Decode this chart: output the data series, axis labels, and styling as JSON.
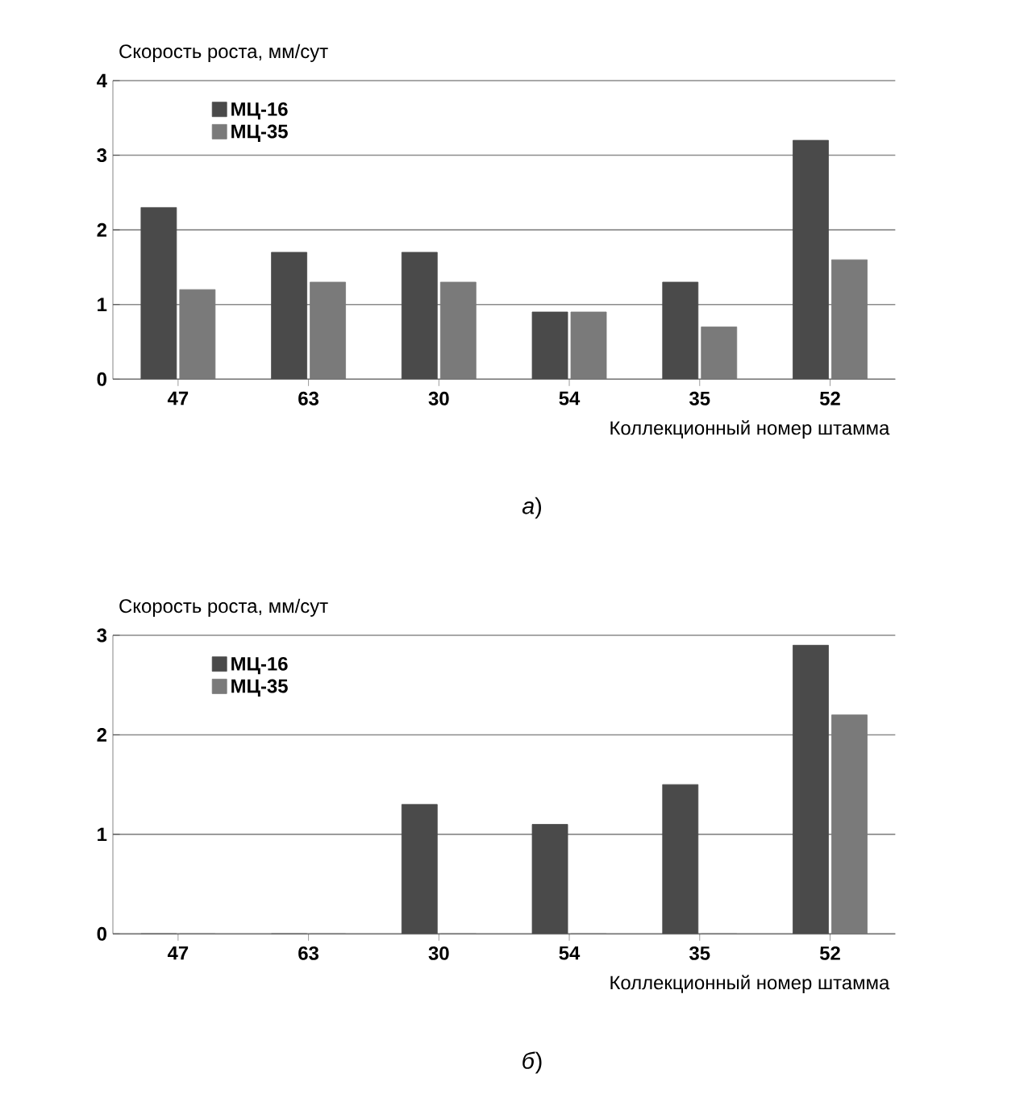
{
  "chart_data": [
    {
      "type": "bar",
      "ylabel": "Скорость роста, мм/сут",
      "xlabel": "Коллекционный номер штамма",
      "categories": [
        "47",
        "63",
        "30",
        "54",
        "35",
        "52"
      ],
      "series": [
        {
          "name": "МЦ-16",
          "color": "#4a4a4a",
          "values": [
            2.3,
            1.7,
            1.7,
            0.9,
            1.3,
            3.2
          ]
        },
        {
          "name": "МЦ-35",
          "color": "#7a7a7a",
          "values": [
            1.2,
            1.3,
            1.3,
            0.9,
            0.7,
            1.6
          ]
        }
      ],
      "ylim": [
        0,
        4
      ],
      "yticks": [
        0,
        1,
        2,
        3,
        4
      ],
      "grid": "y",
      "legend": "top left",
      "annotations": [
        "*а*)"
      ]
    },
    {
      "type": "bar",
      "ylabel": "Скорость роста, мм/сут",
      "xlabel": "Коллекционный номер штамма",
      "categories": [
        "47",
        "63",
        "30",
        "54",
        "35",
        "52"
      ],
      "series": [
        {
          "name": "МЦ-16",
          "color": "#4a4a4a",
          "values": [
            0,
            0,
            1.3,
            1.1,
            1.5,
            2.9
          ]
        },
        {
          "name": "МЦ-35",
          "color": "#7a7a7a",
          "values": [
            0,
            0,
            0,
            0,
            0,
            2.2
          ]
        }
      ],
      "ylim": [
        0,
        3
      ],
      "yticks": [
        0,
        1,
        2,
        3
      ],
      "grid": "y",
      "legend": "top left",
      "annotations": [
        "*б*)"
      ]
    }
  ]
}
